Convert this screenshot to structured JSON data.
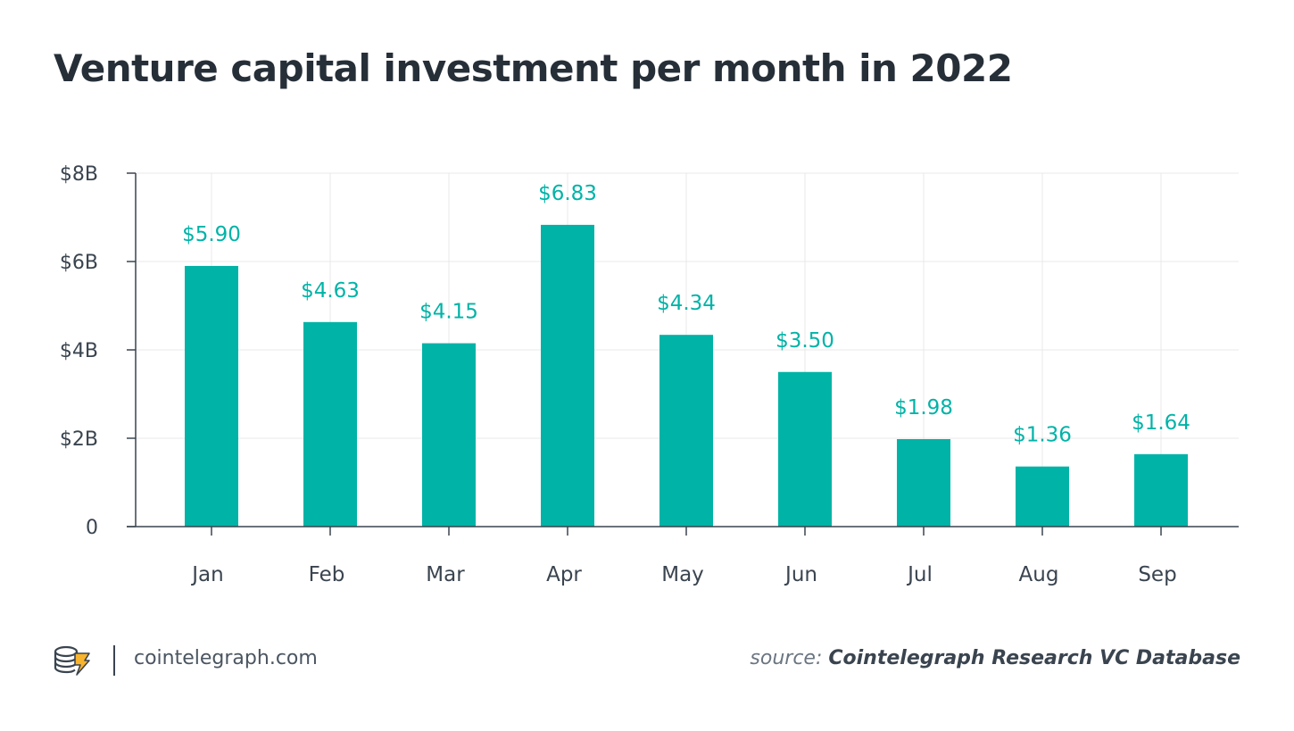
{
  "title": "Venture capital investment per month in 2022",
  "footer": {
    "site": "cointelegraph.com",
    "source_prefix": "source:",
    "source_name": "Cointelegraph Research VC Database",
    "logo_icon": "cointelegraph-coins-logo-icon"
  },
  "colors": {
    "bar": "#00b3a7",
    "label": "#00b3a7",
    "axis": "#3a444f",
    "grid": "#e8e8e8",
    "text": "#3a444f",
    "title": "#262f38"
  },
  "chart_data": {
    "type": "bar",
    "title": "Venture capital investment per month in 2022",
    "xlabel": "",
    "ylabel": "",
    "categories": [
      "Jan",
      "Feb",
      "Mar",
      "Apr",
      "May",
      "Jun",
      "Jul",
      "Aug",
      "Sep"
    ],
    "values": [
      5.9,
      4.63,
      4.15,
      6.83,
      4.34,
      3.5,
      1.98,
      1.36,
      1.64
    ],
    "data_labels": [
      "$5.90",
      "$4.63",
      "$4.15",
      "$6.83",
      "$4.34",
      "$3.50",
      "$1.98",
      "$1.36",
      "$1.64"
    ],
    "ylim": [
      0,
      8
    ],
    "yticks": [
      0,
      2,
      4,
      6,
      8
    ],
    "ytick_labels": [
      "0",
      "$2B",
      "$4B",
      "$6B",
      "$8B"
    ],
    "grid": true,
    "legend": "none"
  }
}
